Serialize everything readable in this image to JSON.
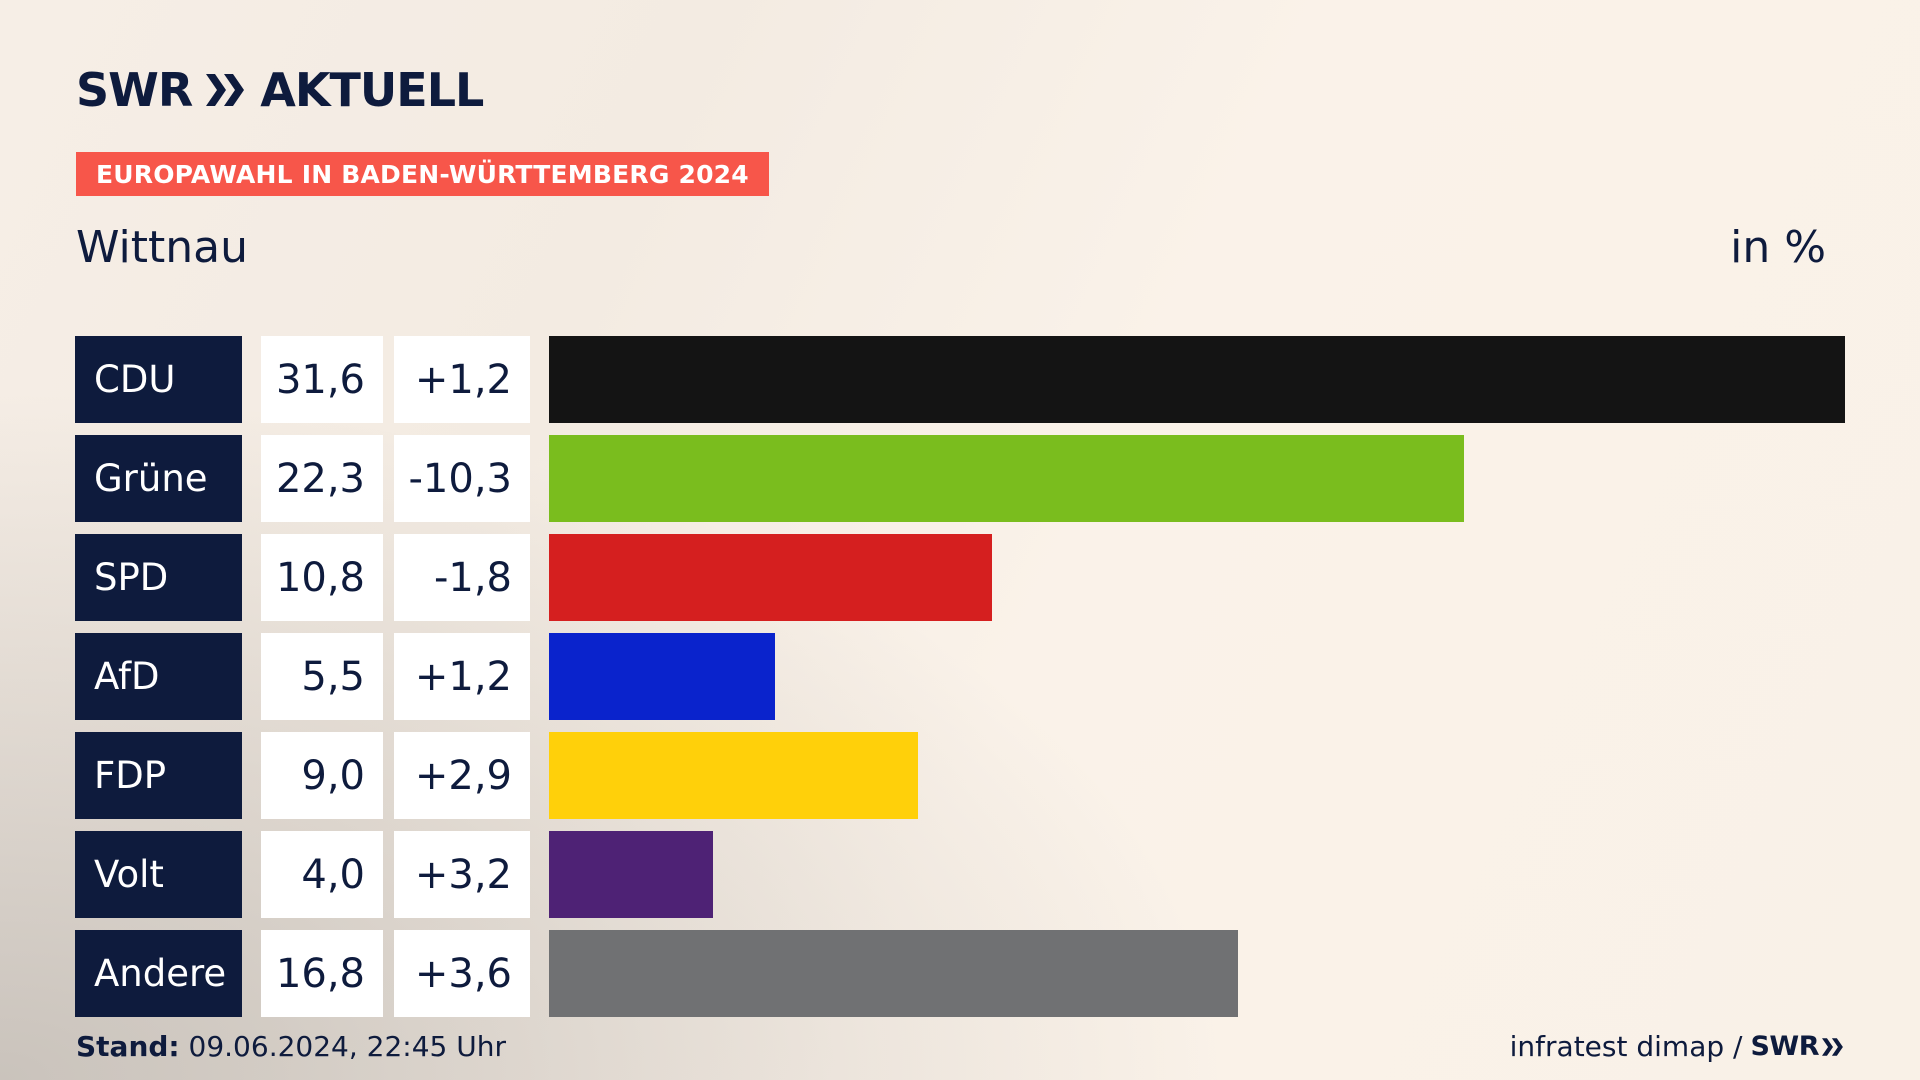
{
  "header": {
    "logo_left": "SWR",
    "logo_right": "AKTUELL",
    "badge": "EUROPAWAHL IN BADEN-WÜRTTEMBERG 2024",
    "place": "Wittnau",
    "unit": "in %"
  },
  "chart_data": {
    "type": "bar",
    "orientation": "horizontal",
    "title": "Wittnau",
    "unit": "in %",
    "categories": [
      "CDU",
      "Grüne",
      "SPD",
      "AfD",
      "FDP",
      "Volt",
      "Andere"
    ],
    "values_display": [
      "31,6",
      "22,3",
      "10,8",
      "5,5",
      "9,0",
      "4,0",
      "16,8"
    ],
    "values": [
      31.6,
      22.3,
      10.8,
      5.5,
      9.0,
      4.0,
      16.8
    ],
    "changes_display": [
      "+1,2",
      "-10,3",
      "-1,8",
      "+1,2",
      "+2,9",
      "+3,2",
      "+3,6"
    ],
    "changes": [
      1.2,
      -10.3,
      -1.8,
      1.2,
      2.9,
      3.2,
      3.6
    ],
    "colors": [
      "#141414",
      "#7abd1e",
      "#d51f1f",
      "#0a23cc",
      "#ffd00a",
      "#4e2275",
      "#707173"
    ],
    "xlim": [
      0,
      31.6
    ]
  },
  "footer": {
    "stand_label": "Stand:",
    "stand_value": "09.06.2024, 22:45 Uhr",
    "source": "infratest dimap /",
    "source_logo": "SWR"
  }
}
